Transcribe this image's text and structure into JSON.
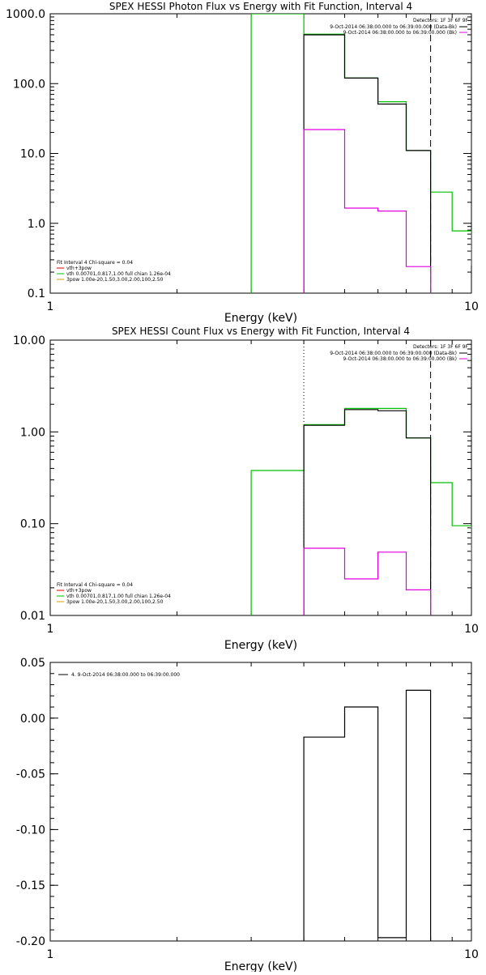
{
  "chart_data": [
    {
      "type": "line",
      "title": "SPEX HESSI Photon Flux vs Energy with Fit Function, Interval 4",
      "xlabel": "Energy (keV)",
      "ylabel": "",
      "xscale": "log",
      "yscale": "log",
      "xlim": [
        1,
        10
      ],
      "ylim": [
        0.1,
        1000
      ],
      "x_ticks": [
        1,
        10
      ],
      "x_tick_labels": [
        "1",
        "10"
      ],
      "y_ticks": [
        0.1,
        1,
        10,
        100,
        1000
      ],
      "y_tick_labels": [
        "0.1",
        "1.0",
        "10.0",
        "100.0",
        "1000.0"
      ],
      "detectors": "Detectors: 1F 3F 6F 9F",
      "time_labels": [
        {
          "text": "9-Oct-2014 06:38:00.000 to 06:39:00.000 (Data-Bk)",
          "color": "#000000"
        },
        {
          "text": "9-Oct-2014 06:38:00.000 to 06:39:00.000 (Bk)",
          "color": "#e000e0"
        }
      ],
      "legend_title": "Fit Interval 4   Chi-square = 0.04",
      "legend": [
        {
          "text": "vth+3pow",
          "color": "#e00000"
        },
        {
          "text": "vth 0.00701,0.817,1.00   full chian 1.26e-04",
          "color": "#00c000"
        },
        {
          "text": "3pow 1.00e-20,1.50,3.00,2.00,100,2.50",
          "color": "#d0a000"
        }
      ],
      "vlines": [
        {
          "x": 4.0,
          "style": "dotted"
        },
        {
          "x": 8.0,
          "style": "dashed"
        }
      ],
      "series": [
        {
          "color": "#00c000",
          "x": [
            3.0,
            3.0,
            4.0,
            4.0,
            5.0,
            5.0,
            6.0,
            6.0,
            7.0,
            7.0,
            8.0,
            8.0,
            9.0,
            9.0,
            10.0,
            10.0
          ],
          "y": [
            0.1,
            1000,
            1000,
            510,
            510,
            120,
            120,
            55,
            55,
            11,
            11,
            2.8,
            2.8,
            0.78,
            0.78,
            0.25
          ]
        },
        {
          "color": "#000000",
          "x": [
            4.0,
            4.0,
            5.0,
            5.0,
            6.0,
            6.0,
            7.0,
            7.0,
            8.0,
            8.0
          ],
          "y": [
            0.1,
            500,
            500,
            120,
            120,
            51,
            51,
            11,
            11,
            0.1
          ]
        },
        {
          "color": "#e000e0",
          "x": [
            4.0,
            4.0,
            5.0,
            5.0,
            6.0,
            6.0,
            7.0,
            7.0,
            8.0,
            8.0
          ],
          "y": [
            0.1,
            22,
            22,
            1.65,
            1.65,
            1.5,
            1.5,
            0.24,
            0.24,
            0.1
          ]
        }
      ]
    },
    {
      "type": "line",
      "title": "SPEX HESSI Count Flux vs Energy with Fit Function, Interval 4",
      "xlabel": "Energy (keV)",
      "ylabel": "",
      "xscale": "log",
      "yscale": "log",
      "xlim": [
        1,
        10
      ],
      "ylim": [
        0.01,
        10
      ],
      "x_ticks": [
        1,
        10
      ],
      "x_tick_labels": [
        "1",
        "10"
      ],
      "y_ticks": [
        0.01,
        0.1,
        1,
        10
      ],
      "y_tick_labels": [
        "0.01",
        "0.10",
        "1.00",
        "10.00"
      ],
      "detectors": "Detectors: 1F 3F 6F 9F",
      "time_labels": [
        {
          "text": "9-Oct-2014 06:38:00.000 to 06:39:00.000 (Data-Bk)",
          "color": "#000000"
        },
        {
          "text": "9-Oct-2014 06:38:00.000 to 06:39:00.000 (Bk)",
          "color": "#e000e0"
        }
      ],
      "legend_title": "Fit Interval 4   Chi-square = 0.04",
      "legend": [
        {
          "text": "vth+3pow",
          "color": "#e00000"
        },
        {
          "text": "vth 0.00701,0.817,1.00   full chian 1.26e-04",
          "color": "#00c000"
        },
        {
          "text": "3pow 1.00e-20,1.50,3.00,2.00,100,2.50",
          "color": "#d0a000"
        }
      ],
      "vlines": [
        {
          "x": 4.0,
          "style": "dotted"
        },
        {
          "x": 8.0,
          "style": "dashed"
        }
      ],
      "series": [
        {
          "color": "#00c000",
          "x": [
            3.0,
            3.0,
            4.0,
            4.0,
            5.0,
            5.0,
            7.0,
            7.0,
            8.0,
            8.0,
            9.0,
            9.0,
            10.0,
            10.0
          ],
          "y": [
            0.01,
            0.38,
            0.38,
            1.2,
            1.2,
            1.8,
            1.8,
            0.86,
            0.86,
            0.28,
            0.28,
            0.095,
            0.095,
            0.03
          ]
        },
        {
          "color": "#000000",
          "x": [
            4.0,
            4.0,
            5.0,
            5.0,
            6.0,
            6.0,
            7.0,
            7.0,
            8.0,
            8.0
          ],
          "y": [
            0.01,
            1.18,
            1.18,
            1.75,
            1.75,
            1.7,
            1.7,
            0.86,
            0.86,
            0.01
          ]
        },
        {
          "color": "#e000e0",
          "x": [
            4.0,
            4.0,
            5.0,
            5.0,
            6.0,
            6.0,
            7.0,
            7.0,
            8.0,
            8.0
          ],
          "y": [
            0.01,
            0.054,
            0.054,
            0.025,
            0.025,
            0.049,
            0.049,
            0.019,
            0.019,
            0.01
          ]
        }
      ]
    },
    {
      "type": "line",
      "title": "",
      "xlabel": "Energy (keV)",
      "ylabel": "",
      "xscale": "log",
      "yscale": "linear",
      "xlim": [
        1,
        10
      ],
      "ylim": [
        -0.2,
        0.05
      ],
      "x_ticks": [
        1,
        10
      ],
      "x_tick_labels": [
        "1",
        "10"
      ],
      "y_ticks": [
        -0.2,
        -0.15,
        -0.1,
        -0.05,
        0.0,
        0.05
      ],
      "y_tick_labels": [
        "-0.20",
        "-0.15",
        "-0.10",
        "-0.05",
        "0.00",
        "0.05"
      ],
      "legend": [
        {
          "text": "4.  9-Oct-2014 06:38:00.000 to 06:39:00.000",
          "color": "#000000"
        }
      ],
      "series": [
        {
          "color": "#000000",
          "x": [
            4.0,
            4.0,
            5.0,
            5.0,
            6.0,
            6.0,
            7.0,
            7.0,
            8.0,
            8.0
          ],
          "y": [
            -0.2,
            -0.017,
            -0.017,
            0.01,
            0.01,
            -0.197,
            -0.197,
            0.025,
            0.025,
            -0.2
          ]
        }
      ]
    }
  ]
}
